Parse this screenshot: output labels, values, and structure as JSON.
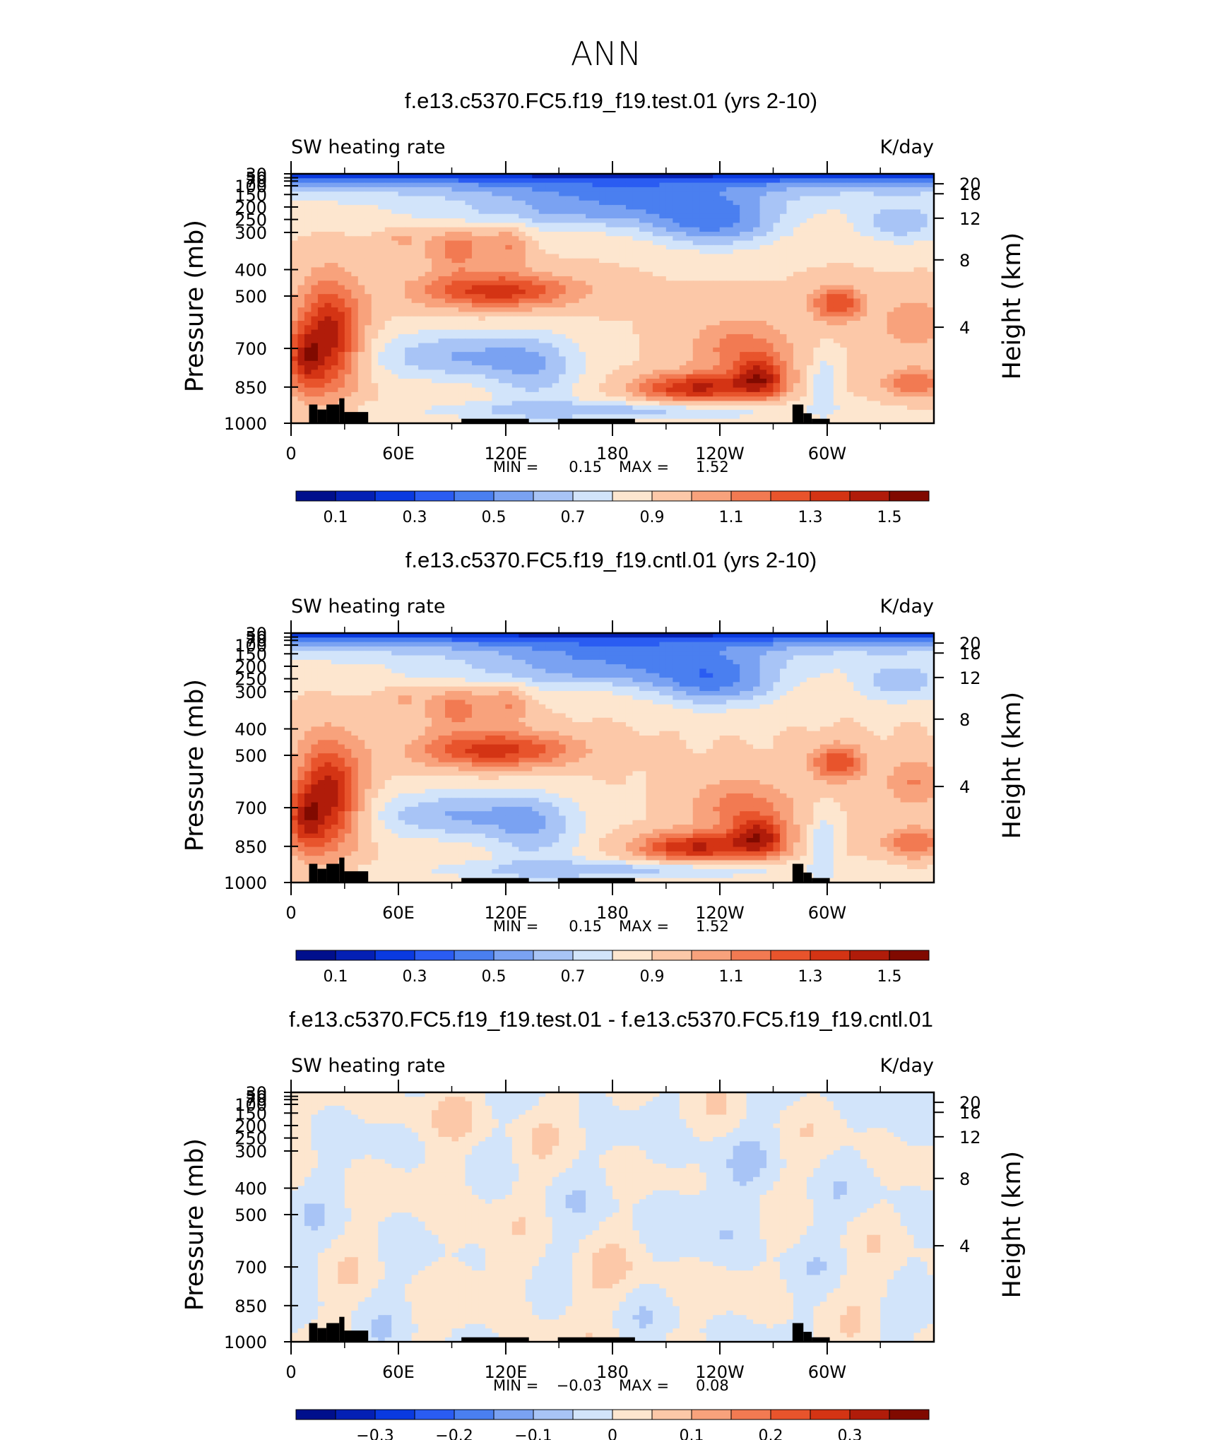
{
  "figure_title": "ANN",
  "colors": {
    "abs_scale": [
      "#000f8c",
      "#0420b4",
      "#0a3ae0",
      "#2a5cf2",
      "#4a7ff0",
      "#7aa2f2",
      "#a8c4f6",
      "#d2e4fa",
      "#fde6cf",
      "#fcc8a8",
      "#f8a27c",
      "#f27a52",
      "#e8542c",
      "#d43414",
      "#b01c0a",
      "#800a00"
    ],
    "diff_scale": [
      "#000f8c",
      "#0420b4",
      "#0a3ae0",
      "#2a5cf2",
      "#4a7ff0",
      "#7aa2f2",
      "#a8c4f6",
      "#d2e4fa",
      "#fde6cf",
      "#fcc8a8",
      "#f8a27c",
      "#f27a52",
      "#e8542c",
      "#d43414",
      "#b01c0a",
      "#800a00"
    ],
    "land": "#000000"
  },
  "chart_data": [
    {
      "type": "heatmap",
      "title": "f.e13.c5370.FC5.f19_f19.test.01 (yrs 2-10)",
      "left_label": "SW heating rate",
      "right_label": "K/day",
      "ylabel": "Pressure (mb)",
      "y2label": "Height (km)",
      "x_ticks": [
        "0",
        "60E",
        "120E",
        "180",
        "120W",
        "60W"
      ],
      "y_ticks": [
        "30",
        "50",
        "70",
        "100",
        "150",
        "200",
        "250",
        "300",
        "400",
        "500",
        "700",
        "850",
        "1000"
      ],
      "y2_ticks": [
        "20",
        "16",
        "12",
        "8",
        "4"
      ],
      "stats": {
        "min_label": "MIN =",
        "min": "0.15",
        "max_label": "MAX =",
        "max": "1.52"
      },
      "colorbar_labels": [
        "0.1",
        "0.3",
        "0.5",
        "0.7",
        "0.9",
        "1.1",
        "1.3",
        "1.5"
      ],
      "value_range": [
        0.15,
        1.52
      ]
    },
    {
      "type": "heatmap",
      "title": "f.e13.c5370.FC5.f19_f19.cntl.01 (yrs 2-10)",
      "left_label": "SW heating rate",
      "right_label": "K/day",
      "ylabel": "Pressure (mb)",
      "y2label": "Height (km)",
      "x_ticks": [
        "0",
        "60E",
        "120E",
        "180",
        "120W",
        "60W"
      ],
      "y_ticks": [
        "30",
        "50",
        "70",
        "100",
        "150",
        "200",
        "250",
        "300",
        "400",
        "500",
        "700",
        "850",
        "1000"
      ],
      "y2_ticks": [
        "20",
        "16",
        "12",
        "8",
        "4"
      ],
      "stats": {
        "min_label": "MIN =",
        "min": "0.15",
        "max_label": "MAX =",
        "max": "1.52"
      },
      "colorbar_labels": [
        "0.1",
        "0.3",
        "0.5",
        "0.7",
        "0.9",
        "1.1",
        "1.3",
        "1.5"
      ],
      "value_range": [
        0.15,
        1.52
      ]
    },
    {
      "type": "heatmap",
      "title": "f.e13.c5370.FC5.f19_f19.test.01 - f.e13.c5370.FC5.f19_f19.cntl.01",
      "left_label": "SW heating rate",
      "right_label": "K/day",
      "ylabel": "Pressure (mb)",
      "y2label": "Height (km)",
      "x_ticks": [
        "0",
        "60E",
        "120E",
        "180",
        "120W",
        "60W"
      ],
      "y_ticks": [
        "30",
        "50",
        "70",
        "100",
        "150",
        "200",
        "250",
        "300",
        "400",
        "500",
        "700",
        "850",
        "1000"
      ],
      "y2_ticks": [
        "20",
        "16",
        "12",
        "8",
        "4"
      ],
      "stats": {
        "min_label": "MIN =",
        "min": "−0.03",
        "max_label": "MAX =",
        "max": "0.08"
      },
      "colorbar_labels": [
        "−0.3",
        "−0.2",
        "−0.1",
        "0",
        "0.1",
        "0.2",
        "0.3"
      ],
      "value_range": [
        -0.03,
        0.08
      ]
    }
  ]
}
